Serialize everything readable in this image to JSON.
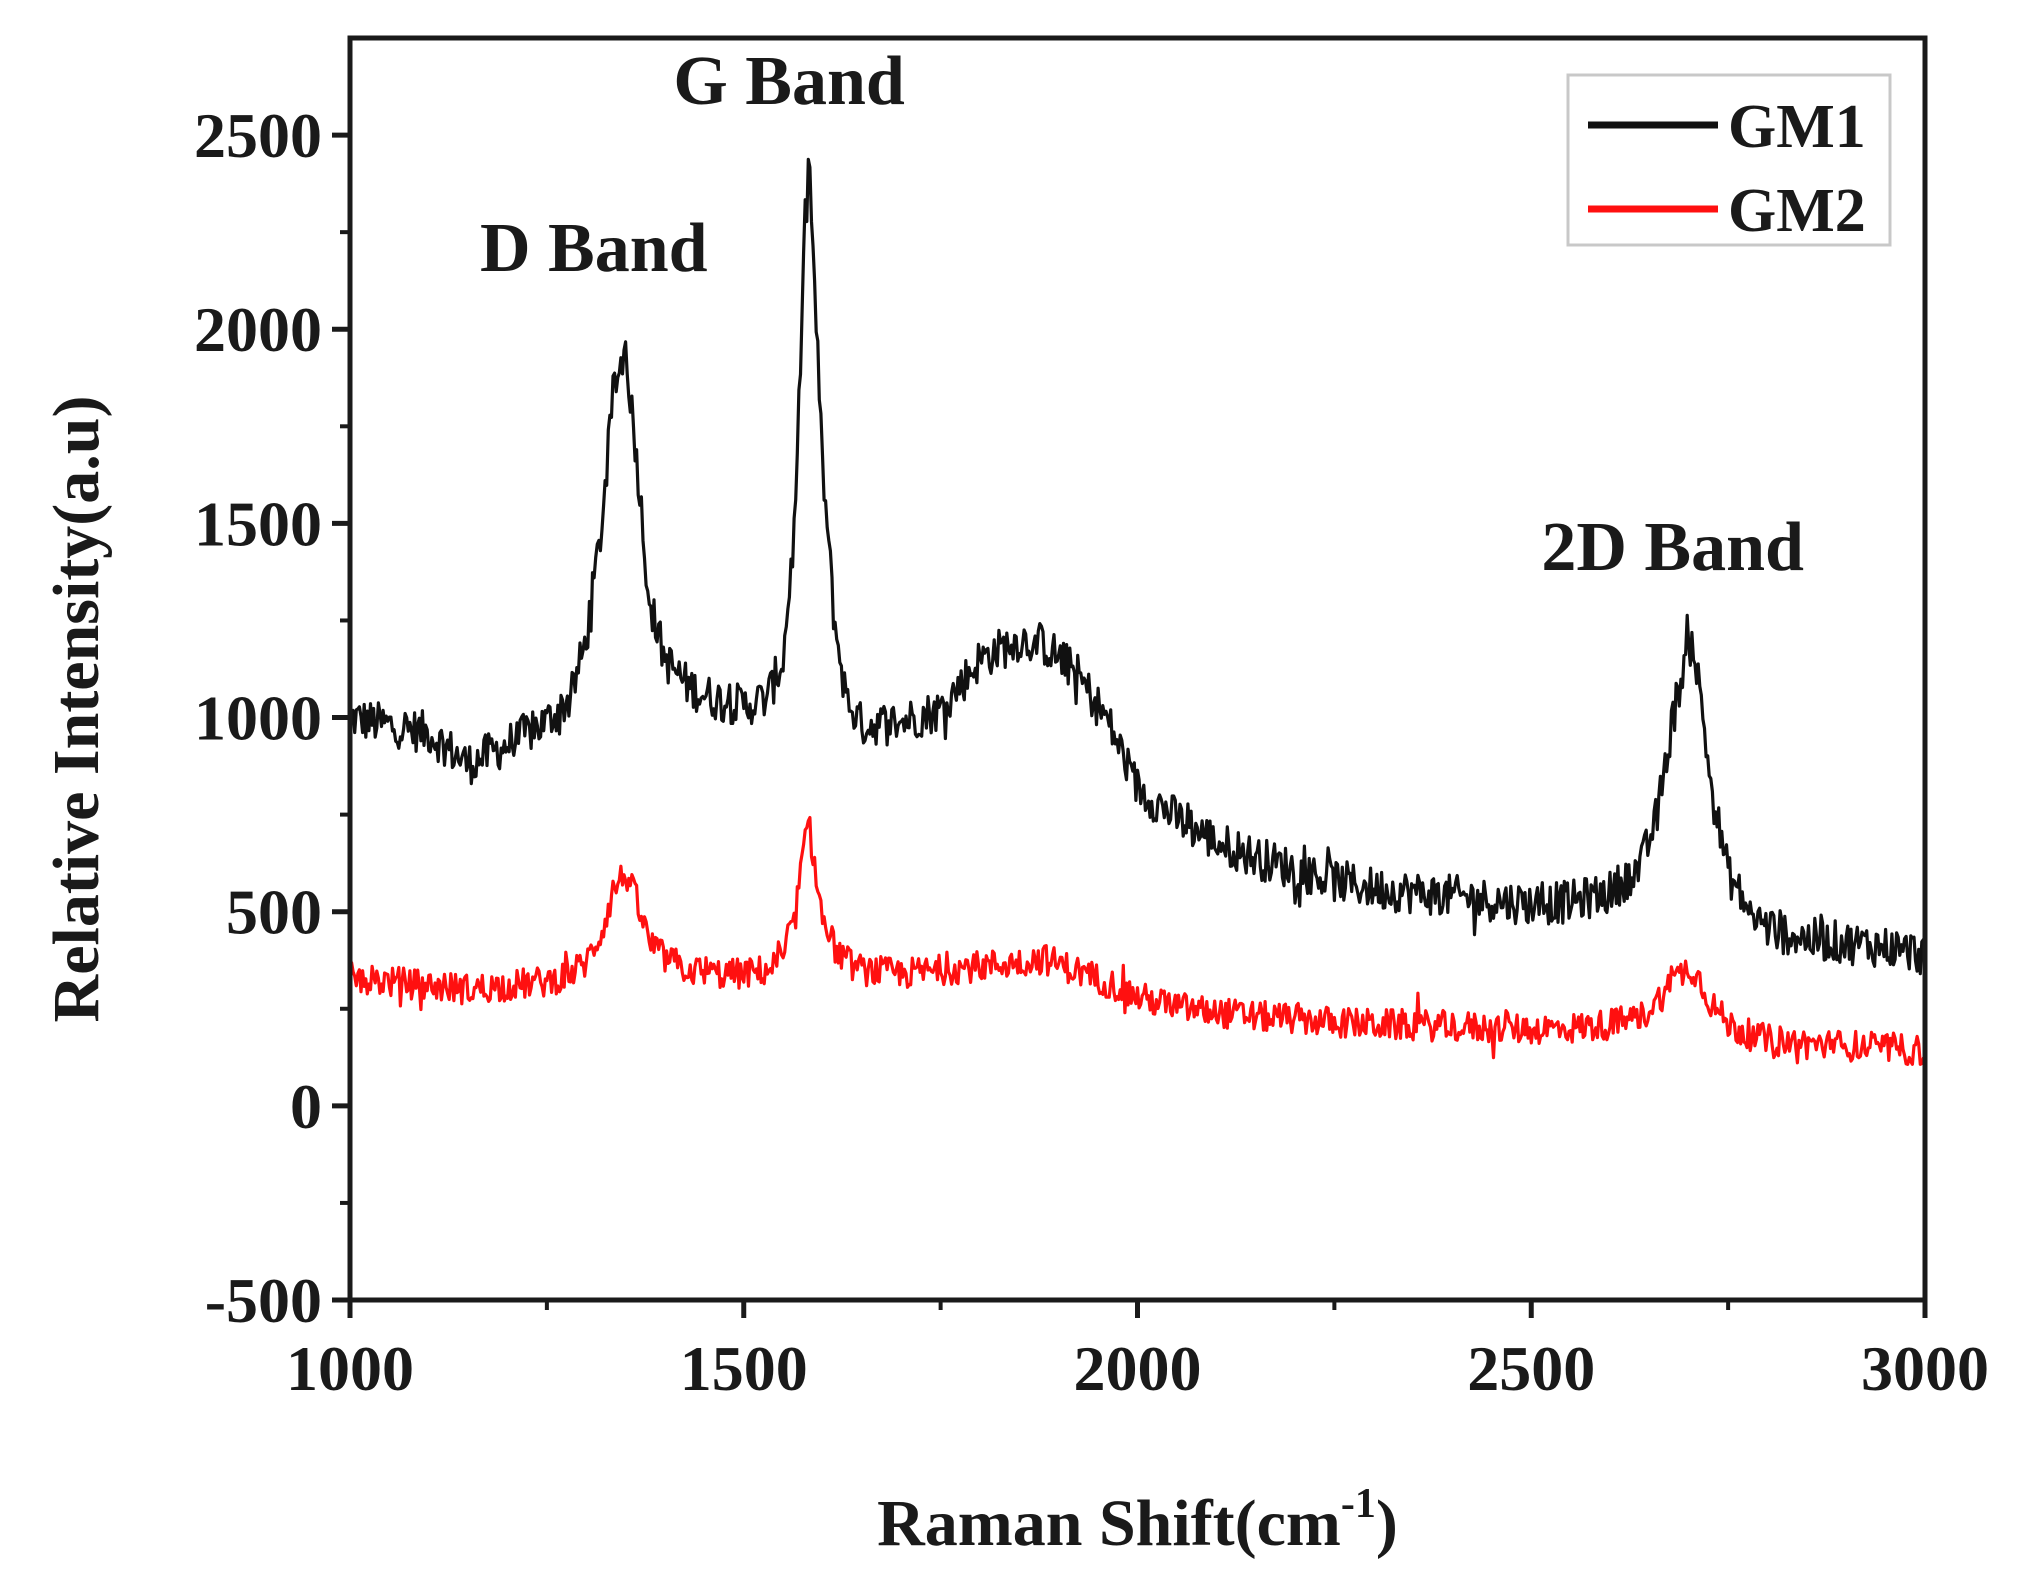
{
  "chart_data": {
    "type": "line",
    "title": "",
    "xlabel": "Raman Shift(cm",
    "xlabel_sup": "-1",
    "xlabel_close": ")",
    "ylabel": "Relative Intensity(a.u)",
    "xlim": [
      1000,
      3000
    ],
    "ylim": [
      -500,
      2750
    ],
    "xticks": [
      1000,
      1500,
      2000,
      2500,
      3000
    ],
    "xtick_labels": [
      "1000",
      "1500",
      "2000",
      "2500",
      "3000"
    ],
    "yticks": [
      -500,
      0,
      500,
      1000,
      1500,
      2000,
      2500
    ],
    "ytick_labels": [
      "-500",
      "0",
      "500",
      "1000",
      "1500",
      "2000",
      "2500"
    ],
    "legend_position": "top-right",
    "series": [
      {
        "name": "GM1",
        "color": "#111111",
        "x": [
          1000,
          1050,
          1100,
          1150,
          1200,
          1250,
          1280,
          1300,
          1320,
          1335,
          1350,
          1365,
          1380,
          1400,
          1430,
          1460,
          1500,
          1530,
          1550,
          1565,
          1575,
          1583,
          1590,
          1600,
          1615,
          1630,
          1650,
          1700,
          1750,
          1800,
          1850,
          1880,
          1920,
          1960,
          2000,
          2050,
          2100,
          2150,
          2200,
          2250,
          2300,
          2350,
          2400,
          2450,
          2500,
          2550,
          2600,
          2640,
          2660,
          2680,
          2695,
          2705,
          2715,
          2730,
          2750,
          2780,
          2800,
          2850,
          2900,
          2950,
          3000
        ],
        "y": [
          1000,
          980,
          960,
          880,
          930,
          990,
          1050,
          1200,
          1500,
          1850,
          1950,
          1650,
          1300,
          1150,
          1080,
          1050,
          1030,
          1050,
          1150,
          1500,
          2100,
          2450,
          2100,
          1650,
          1250,
          1050,
          980,
          990,
          1020,
          1150,
          1200,
          1190,
          1120,
          1000,
          820,
          740,
          680,
          640,
          610,
          580,
          560,
          550,
          540,
          530,
          520,
          525,
          550,
          620,
          750,
          1000,
          1150,
          1200,
          1050,
          800,
          600,
          490,
          460,
          430,
          420,
          410,
          390
        ]
      },
      {
        "name": "GM2",
        "color": "#ff1010",
        "x": [
          1000,
          1050,
          1100,
          1150,
          1200,
          1250,
          1280,
          1300,
          1320,
          1335,
          1350,
          1365,
          1380,
          1400,
          1430,
          1460,
          1500,
          1530,
          1550,
          1565,
          1575,
          1583,
          1590,
          1600,
          1615,
          1630,
          1650,
          1700,
          1750,
          1800,
          1850,
          1880,
          1920,
          1960,
          2000,
          2050,
          2100,
          2150,
          2200,
          2250,
          2300,
          2350,
          2400,
          2450,
          2500,
          2550,
          2600,
          2640,
          2660,
          2680,
          2695,
          2705,
          2715,
          2730,
          2750,
          2780,
          2800,
          2850,
          2900,
          2950,
          3000
        ],
        "y": [
          330,
          320,
          310,
          300,
          310,
          320,
          340,
          370,
          450,
          560,
          600,
          520,
          420,
          380,
          350,
          340,
          340,
          350,
          380,
          480,
          650,
          720,
          620,
          480,
          410,
          370,
          350,
          340,
          350,
          360,
          370,
          380,
          350,
          320,
          280,
          255,
          240,
          230,
          225,
          215,
          210,
          208,
          205,
          200,
          198,
          200,
          210,
          230,
          270,
          320,
          350,
          355,
          320,
          260,
          210,
          180,
          170,
          160,
          155,
          150,
          140
        ]
      }
    ],
    "annotations": [
      {
        "text": "D Band",
        "x": 1335,
        "y": 2150
      },
      {
        "text": "G Band",
        "x": 1583,
        "y": 2580
      },
      {
        "text": "2D Band",
        "x": 2705,
        "y": 1380
      }
    ]
  }
}
